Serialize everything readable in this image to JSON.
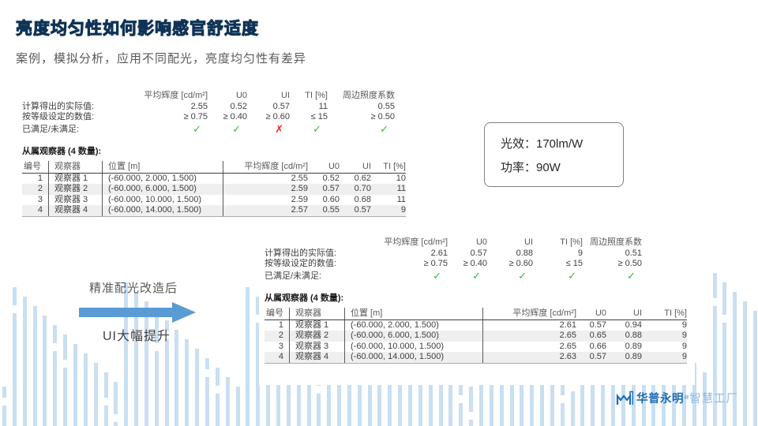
{
  "title": "亮度均匀性如何影响感官舒适度",
  "subtitle": "案例，模拟分析，应用不同配光，亮度均匀性有差异",
  "icons": {
    "pass": "✓",
    "fail": "✗"
  },
  "colors": {
    "accent_blue": "#5B9BD5",
    "background_bar_blue": "#C9DFF2",
    "pass_green": "#2FBE2F",
    "fail_red": "#FF1F1F",
    "brand_blue": "#1E6CB4",
    "brand_light_blue": "#92B9DE"
  },
  "spec_box": {
    "lines": [
      "光效：170lm/W",
      "功率：90W"
    ]
  },
  "annotation": {
    "line1": "精准配光改造后",
    "line2": "UI大幅提升"
  },
  "logo": {
    "brand": "华普永明",
    "mark": "®",
    "suffix": "智慧工厂"
  },
  "reports": [
    {
      "summary": {
        "columns": [
          "平均辉度 [cd/m²]",
          "U0",
          "UI",
          "TI [%]",
          "周边照度系数"
        ],
        "actual_label": "计算得出的实际值:",
        "actual": [
          "2.55",
          "0.52",
          "0.57",
          "11",
          "0.55"
        ],
        "required_label": "按等级设定的数值:",
        "required": [
          "≥ 0.75",
          "≥ 0.40",
          "≥ 0.60",
          "≤ 15",
          "≥ 0.50"
        ],
        "status_label": "已满足/未满足:",
        "status": [
          "pass",
          "pass",
          "fail",
          "pass",
          "pass"
        ]
      },
      "observers_title": "从属观察器 (4 数量):",
      "table": {
        "columns": [
          "编号",
          "观察器",
          "位置 [m]",
          "平均辉度 [cd/m²]",
          "U0",
          "UI",
          "TI [%]"
        ],
        "rows": [
          [
            "1",
            "观察器 1",
            "(-60.000, 2.000, 1.500)",
            "2.55",
            "0.52",
            "0.62",
            "10"
          ],
          [
            "2",
            "观察器 2",
            "(-60.000, 6.000, 1.500)",
            "2.59",
            "0.57",
            "0.70",
            "11"
          ],
          [
            "3",
            "观察器 3",
            "(-60.000, 10.000, 1.500)",
            "2.59",
            "0.60",
            "0.68",
            "11"
          ],
          [
            "4",
            "观察器 4",
            "(-60.000, 14.000, 1.500)",
            "2.57",
            "0.55",
            "0.57",
            "9"
          ]
        ]
      }
    },
    {
      "summary": {
        "columns": [
          "平均辉度 [cd/m²]",
          "U0",
          "UI",
          "TI [%]",
          "周边照度系数"
        ],
        "actual_label": "计算得出的实际值:",
        "actual": [
          "2.61",
          "0.57",
          "0.88",
          "9",
          "0.51"
        ],
        "required_label": "按等级设定的数值:",
        "required": [
          "≥ 0.75",
          "≥ 0.40",
          "≥ 0.60",
          "≤ 15",
          "≥ 0.50"
        ],
        "status_label": "已满足/未满足:",
        "status": [
          "pass",
          "pass",
          "pass",
          "pass",
          "pass"
        ]
      },
      "observers_title": "从属观察器 (4 数量):",
      "table": {
        "columns": [
          "编号",
          "观察器",
          "位置 [m]",
          "平均辉度 [cd/m²]",
          "U0",
          "UI",
          "TI [%]"
        ],
        "rows": [
          [
            "1",
            "观察器 1",
            "(-60.000, 2.000, 1.500)",
            "2.61",
            "0.57",
            "0.94",
            "9"
          ],
          [
            "2",
            "观察器 2",
            "(-60.000, 6.000, 1.500)",
            "2.65",
            "0.65",
            "0.88",
            "9"
          ],
          [
            "3",
            "观察器 3",
            "(-60.000, 10.000, 1.500)",
            "2.65",
            "0.66",
            "0.89",
            "9"
          ],
          [
            "4",
            "观察器 4",
            "(-60.000, 14.000, 1.500)",
            "2.63",
            "0.57",
            "0.89",
            "9"
          ]
        ]
      }
    }
  ]
}
